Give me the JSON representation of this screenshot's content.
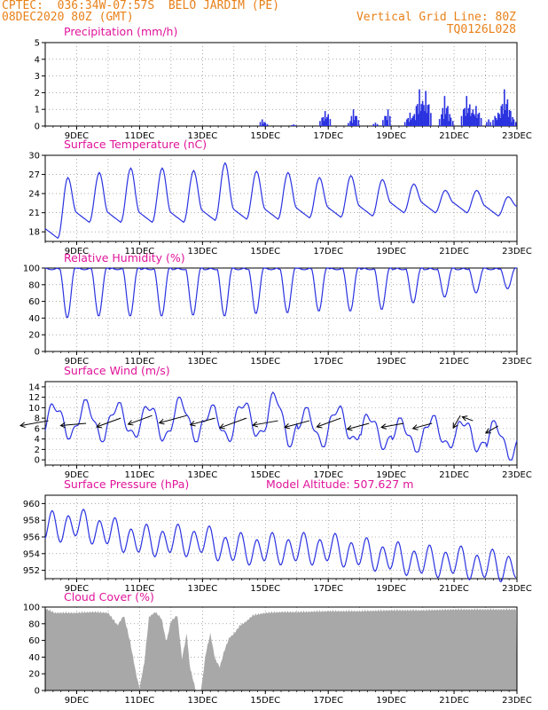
{
  "header": {
    "line1_left": "CPTEC:  036:34W-07:57S  BELO JARDIM (PE)",
    "line2_left": "08DEC2020 80Z (GMT)",
    "line1_right": "Vertical Grid Line: 80Z",
    "line2_right": "TQ0126L028"
  },
  "colors": {
    "title": "#e0149a",
    "header": "#e8811a",
    "series": "#2a32e0",
    "cloud": "#a8a8a8"
  },
  "chart_data": [
    {
      "type": "bar",
      "title": "Precipitation (mm/h)",
      "ylim": [
        0,
        5
      ],
      "yticks": [
        0,
        1,
        2,
        3,
        4,
        5
      ],
      "xticks": [
        "9DEC",
        "11DEC",
        "13DEC",
        "15DEC",
        "17DEC",
        "19DEC",
        "21DEC",
        "23DEC"
      ],
      "events": [
        {
          "day": 14.9,
          "value": 0.4
        },
        {
          "day": 15.0,
          "value": 0.2
        },
        {
          "day": 15.9,
          "value": 0.1
        },
        {
          "day": 16.8,
          "value": 0.5
        },
        {
          "day": 16.9,
          "value": 0.9
        },
        {
          "day": 17.0,
          "value": 0.7
        },
        {
          "day": 17.7,
          "value": 0.3
        },
        {
          "day": 17.8,
          "value": 1.0
        },
        {
          "day": 17.9,
          "value": 0.6
        },
        {
          "day": 18.5,
          "value": 0.2
        },
        {
          "day": 18.8,
          "value": 0.6
        },
        {
          "day": 18.9,
          "value": 1.0
        },
        {
          "day": 19.5,
          "value": 0.4
        },
        {
          "day": 19.6,
          "value": 0.8
        },
        {
          "day": 19.7,
          "value": 0.6
        },
        {
          "day": 19.8,
          "value": 1.2
        },
        {
          "day": 19.9,
          "value": 2.2
        },
        {
          "day": 20.0,
          "value": 1.5
        },
        {
          "day": 20.1,
          "value": 2.1
        },
        {
          "day": 20.2,
          "value": 1.3
        },
        {
          "day": 20.6,
          "value": 0.7
        },
        {
          "day": 20.7,
          "value": 1.8
        },
        {
          "day": 20.8,
          "value": 1.2
        },
        {
          "day": 20.9,
          "value": 0.5
        },
        {
          "day": 21.3,
          "value": 1.0
        },
        {
          "day": 21.4,
          "value": 1.8
        },
        {
          "day": 21.5,
          "value": 1.3
        },
        {
          "day": 21.6,
          "value": 1.0
        },
        {
          "day": 21.7,
          "value": 1.2
        },
        {
          "day": 21.8,
          "value": 0.8
        },
        {
          "day": 22.1,
          "value": 0.4
        },
        {
          "day": 22.3,
          "value": 0.6
        },
        {
          "day": 22.4,
          "value": 0.8
        },
        {
          "day": 22.5,
          "value": 1.2
        },
        {
          "day": 22.6,
          "value": 2.2
        },
        {
          "day": 22.7,
          "value": 1.6
        },
        {
          "day": 22.8,
          "value": 0.9
        },
        {
          "day": 22.9,
          "value": 0.4
        }
      ]
    },
    {
      "type": "line",
      "title": "Surface Temperature (nC)",
      "ylim": [
        16.5,
        30
      ],
      "yticks": [
        18,
        21,
        24,
        27,
        30
      ],
      "xticks": [
        "9DEC",
        "11DEC",
        "13DEC",
        "15DEC",
        "17DEC",
        "19DEC",
        "21DEC",
        "23DEC"
      ],
      "diurnal": [
        {
          "day": 8,
          "min": 17.0,
          "max": 26.5
        },
        {
          "day": 9,
          "min": 19.5,
          "max": 27.3
        },
        {
          "day": 10,
          "min": 19.5,
          "max": 28.0
        },
        {
          "day": 11,
          "min": 19.5,
          "max": 28.0
        },
        {
          "day": 12,
          "min": 19.5,
          "max": 27.6
        },
        {
          "day": 13,
          "min": 19.8,
          "max": 28.8
        },
        {
          "day": 14,
          "min": 20.0,
          "max": 27.5
        },
        {
          "day": 15,
          "min": 20.0,
          "max": 27.3
        },
        {
          "day": 16,
          "min": 20.2,
          "max": 26.5
        },
        {
          "day": 17,
          "min": 20.3,
          "max": 26.8
        },
        {
          "day": 18,
          "min": 20.5,
          "max": 26.2
        },
        {
          "day": 19,
          "min": 21.0,
          "max": 25.5
        },
        {
          "day": 20,
          "min": 21.0,
          "max": 24.5
        },
        {
          "day": 21,
          "min": 21.0,
          "max": 24.5
        },
        {
          "day": 22,
          "min": 20.5,
          "max": 23.5
        }
      ]
    },
    {
      "type": "line",
      "title": "Relative Humidity (%)",
      "ylim": [
        0,
        100
      ],
      "yticks": [
        0,
        20,
        40,
        60,
        80,
        100
      ],
      "xticks": [
        "9DEC",
        "11DEC",
        "13DEC",
        "15DEC",
        "17DEC",
        "19DEC",
        "21DEC",
        "23DEC"
      ],
      "diurnal_minima": [
        {
          "day": 8,
          "value": 40
        },
        {
          "day": 9,
          "value": 42
        },
        {
          "day": 10,
          "value": 42
        },
        {
          "day": 11,
          "value": 42
        },
        {
          "day": 12,
          "value": 43
        },
        {
          "day": 13,
          "value": 42
        },
        {
          "day": 14,
          "value": 45
        },
        {
          "day": 15,
          "value": 46
        },
        {
          "day": 16,
          "value": 48
        },
        {
          "day": 17,
          "value": 48
        },
        {
          "day": 18,
          "value": 50
        },
        {
          "day": 19,
          "value": 58
        },
        {
          "day": 20,
          "value": 65
        },
        {
          "day": 21,
          "value": 70
        },
        {
          "day": 22,
          "value": 75
        }
      ],
      "max": 100
    },
    {
      "type": "line",
      "title": "Surface Wind (m/s)",
      "ylim": [
        -1,
        15
      ],
      "yticks": [
        0,
        2,
        4,
        6,
        8,
        10,
        12,
        14
      ],
      "xticks": [
        "9DEC",
        "11DEC",
        "13DEC",
        "15DEC",
        "17DEC",
        "19DEC",
        "21DEC",
        "23DEC"
      ],
      "diurnal": [
        {
          "day": 8,
          "min": 4.5,
          "max": 10.5
        },
        {
          "day": 9,
          "min": 4.0,
          "max": 11.0
        },
        {
          "day": 10,
          "min": 4.5,
          "max": 10.5
        },
        {
          "day": 11,
          "min": 4.0,
          "max": 10.5
        },
        {
          "day": 12,
          "min": 4.0,
          "max": 11.5
        },
        {
          "day": 13,
          "min": 4.0,
          "max": 10.0
        },
        {
          "day": 14,
          "min": 4.5,
          "max": 11.0
        },
        {
          "day": 15,
          "min": 3.0,
          "max": 12.5
        },
        {
          "day": 16,
          "min": 3.0,
          "max": 9.5
        },
        {
          "day": 17,
          "min": 3.5,
          "max": 10.0
        },
        {
          "day": 18,
          "min": 2.5,
          "max": 8.5
        },
        {
          "day": 19,
          "min": 2.0,
          "max": 7.5
        },
        {
          "day": 20,
          "min": 2.5,
          "max": 8.0
        },
        {
          "day": 21,
          "min": 2.0,
          "max": 7.5
        },
        {
          "day": 22,
          "min": 0.5,
          "max": 7.0
        }
      ],
      "arrows": [
        {
          "day": 8.1,
          "y": 7.5,
          "dir": 190,
          "len": 10
        },
        {
          "day": 9.3,
          "y": 7.0,
          "dir": 185,
          "len": 9
        },
        {
          "day": 10.4,
          "y": 8.0,
          "dir": 200,
          "len": 9
        },
        {
          "day": 11.4,
          "y": 8.5,
          "dir": 200,
          "len": 9
        },
        {
          "day": 12.5,
          "y": 8.5,
          "dir": 195,
          "len": 10
        },
        {
          "day": 13.4,
          "y": 8.0,
          "dir": 195,
          "len": 9
        },
        {
          "day": 14.4,
          "y": 8.0,
          "dir": 200,
          "len": 10
        },
        {
          "day": 15.4,
          "y": 7.5,
          "dir": 190,
          "len": 9
        },
        {
          "day": 16.4,
          "y": 7.5,
          "dir": 195,
          "len": 9
        },
        {
          "day": 17.4,
          "y": 8.0,
          "dir": 200,
          "len": 9
        },
        {
          "day": 18.3,
          "y": 7.0,
          "dir": 195,
          "len": 8
        },
        {
          "day": 19.4,
          "y": 7.0,
          "dir": 190,
          "len": 8
        },
        {
          "day": 20.3,
          "y": 7.0,
          "dir": 195,
          "len": 7
        },
        {
          "day": 21.2,
          "y": 8.5,
          "dir": 240,
          "len": 5
        },
        {
          "day": 21.6,
          "y": 7.5,
          "dir": 160,
          "len": 4
        },
        {
          "day": 22.4,
          "y": 6.5,
          "dir": 210,
          "len": 5
        }
      ]
    },
    {
      "type": "line",
      "title": "Surface Pressure (hPa)",
      "annotation": "Model Altitude: 507.627 m",
      "ylim": [
        951,
        961
      ],
      "yticks": [
        952,
        954,
        956,
        958,
        960
      ],
      "xticks": [
        "9DEC",
        "11DEC",
        "13DEC",
        "15DEC",
        "17DEC",
        "19DEC",
        "21DEC",
        "23DEC"
      ],
      "trend": [
        {
          "day": 8,
          "mean": 957.0
        },
        {
          "day": 9,
          "mean": 957.5
        },
        {
          "day": 10,
          "mean": 956.5
        },
        {
          "day": 11,
          "mean": 955.5
        },
        {
          "day": 12,
          "mean": 955.5
        },
        {
          "day": 13,
          "mean": 955.5
        },
        {
          "day": 14,
          "mean": 954.5
        },
        {
          "day": 15,
          "mean": 954.5
        },
        {
          "day": 16,
          "mean": 954.5
        },
        {
          "day": 17,
          "mean": 954.5
        },
        {
          "day": 18,
          "mean": 954.0
        },
        {
          "day": 19,
          "mean": 953.5
        },
        {
          "day": 20,
          "mean": 953.0
        },
        {
          "day": 21,
          "mean": 953.0
        },
        {
          "day": 22,
          "mean": 952.5
        },
        {
          "day": 23,
          "mean": 952.5
        }
      ],
      "semidiurnal_amplitude": 1.6
    },
    {
      "type": "area",
      "title": "Cloud Cover (%)",
      "ylim": [
        0,
        100
      ],
      "yticks": [
        0,
        20,
        40,
        60,
        80,
        100
      ],
      "xticks": [
        "9DEC",
        "11DEC",
        "13DEC",
        "15DEC",
        "17DEC",
        "19DEC",
        "21DEC",
        "23DEC"
      ],
      "values": [
        {
          "day": 8.0,
          "value": 100
        },
        {
          "day": 8.3,
          "value": 95
        },
        {
          "day": 8.6,
          "value": 95
        },
        {
          "day": 9.0,
          "value": 95
        },
        {
          "day": 9.5,
          "value": 96
        },
        {
          "day": 10.0,
          "value": 95
        },
        {
          "day": 10.3,
          "value": 80
        },
        {
          "day": 10.5,
          "value": 92
        },
        {
          "day": 10.7,
          "value": 60
        },
        {
          "day": 10.9,
          "value": 20
        },
        {
          "day": 11.0,
          "value": 5
        },
        {
          "day": 11.15,
          "value": 35
        },
        {
          "day": 11.3,
          "value": 90
        },
        {
          "day": 11.5,
          "value": 96
        },
        {
          "day": 11.7,
          "value": 88
        },
        {
          "day": 11.85,
          "value": 60
        },
        {
          "day": 12.0,
          "value": 85
        },
        {
          "day": 12.2,
          "value": 92
        },
        {
          "day": 12.35,
          "value": 40
        },
        {
          "day": 12.5,
          "value": 70
        },
        {
          "day": 12.6,
          "value": 30
        },
        {
          "day": 12.8,
          "value": 0
        },
        {
          "day": 12.95,
          "value": 0
        },
        {
          "day": 13.1,
          "value": 45
        },
        {
          "day": 13.25,
          "value": 70
        },
        {
          "day": 13.4,
          "value": 40
        },
        {
          "day": 13.55,
          "value": 30
        },
        {
          "day": 13.7,
          "value": 50
        },
        {
          "day": 13.85,
          "value": 65
        },
        {
          "day": 14.0,
          "value": 70
        },
        {
          "day": 14.2,
          "value": 80
        },
        {
          "day": 14.4,
          "value": 85
        },
        {
          "day": 14.6,
          "value": 92
        },
        {
          "day": 15.0,
          "value": 95
        },
        {
          "day": 15.5,
          "value": 96
        },
        {
          "day": 16.0,
          "value": 96
        },
        {
          "day": 17.0,
          "value": 97
        },
        {
          "day": 18.0,
          "value": 97
        },
        {
          "day": 19.0,
          "value": 98
        },
        {
          "day": 20.0,
          "value": 98
        },
        {
          "day": 21.0,
          "value": 99
        },
        {
          "day": 22.0,
          "value": 99
        },
        {
          "day": 23.0,
          "value": 99
        }
      ]
    }
  ]
}
